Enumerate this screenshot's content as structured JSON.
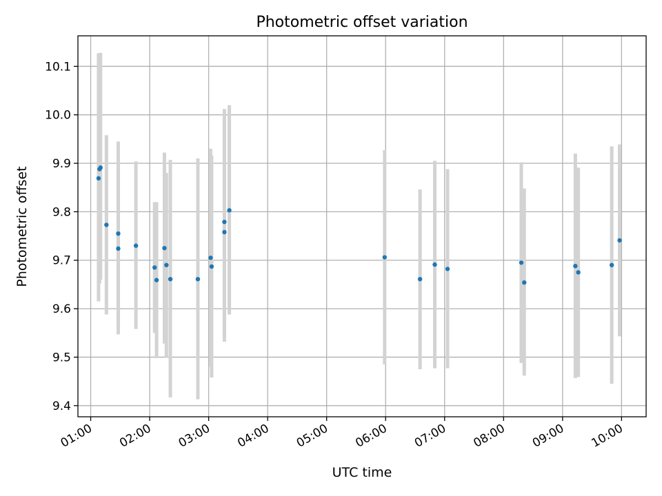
{
  "chart_data": {
    "type": "scatter",
    "title": "Photometric offset variation",
    "xlabel": "UTC time",
    "ylabel": "Photometric offset",
    "x_axis_type": "time",
    "xlim": [
      "00:47",
      "10:25"
    ],
    "ylim": [
      9.377,
      10.163
    ],
    "xticks": [
      "01:00",
      "02:00",
      "03:00",
      "04:00",
      "05:00",
      "06:00",
      "07:00",
      "08:00",
      "09:00",
      "10:00"
    ],
    "yticks": [
      9.4,
      9.5,
      9.6,
      9.7,
      9.8,
      9.9,
      10.0,
      10.1
    ],
    "ytick_labels": [
      "9.4",
      "9.5",
      "9.6",
      "9.7",
      "9.8",
      "9.9",
      "10.0",
      "10.1"
    ],
    "grid": true,
    "marker_color": "#1f77b4",
    "errorbar_color": "#d3d3d3",
    "points": [
      {
        "x": "01:08",
        "y": 9.869,
        "ylo": 9.615,
        "yhi": 10.127
      },
      {
        "x": "01:09",
        "y": 9.888,
        "ylo": 9.652,
        "yhi": 10.127
      },
      {
        "x": "01:10",
        "y": 9.891,
        "ylo": 9.66,
        "yhi": 10.128
      },
      {
        "x": "01:16",
        "y": 9.773,
        "ylo": 9.588,
        "yhi": 9.958
      },
      {
        "x": "01:28",
        "y": 9.755,
        "ylo": 9.565,
        "yhi": 9.945
      },
      {
        "x": "01:28",
        "y": 9.724,
        "ylo": 9.547,
        "yhi": 9.9
      },
      {
        "x": "01:46",
        "y": 9.73,
        "ylo": 9.558,
        "yhi": 9.904
      },
      {
        "x": "02:05",
        "y": 9.685,
        "ylo": 9.55,
        "yhi": 9.82
      },
      {
        "x": "02:07",
        "y": 9.659,
        "ylo": 9.498,
        "yhi": 9.82
      },
      {
        "x": "02:15",
        "y": 9.725,
        "ylo": 9.528,
        "yhi": 9.922
      },
      {
        "x": "02:17",
        "y": 9.69,
        "ylo": 9.5,
        "yhi": 9.88
      },
      {
        "x": "02:21",
        "y": 9.661,
        "ylo": 9.417,
        "yhi": 9.907
      },
      {
        "x": "02:49",
        "y": 9.661,
        "ylo": 9.413,
        "yhi": 9.91
      },
      {
        "x": "03:02",
        "y": 9.705,
        "ylo": 9.48,
        "yhi": 9.93
      },
      {
        "x": "03:03",
        "y": 9.687,
        "ylo": 9.458,
        "yhi": 9.916
      },
      {
        "x": "03:16",
        "y": 9.779,
        "ylo": 9.546,
        "yhi": 10.012
      },
      {
        "x": "03:16",
        "y": 9.758,
        "ylo": 9.532,
        "yhi": 9.99
      },
      {
        "x": "03:21",
        "y": 9.803,
        "ylo": 9.588,
        "yhi": 10.02
      },
      {
        "x": "05:59",
        "y": 9.706,
        "ylo": 9.485,
        "yhi": 9.927
      },
      {
        "x": "06:35",
        "y": 9.661,
        "ylo": 9.475,
        "yhi": 9.846
      },
      {
        "x": "06:50",
        "y": 9.691,
        "ylo": 9.477,
        "yhi": 9.905
      },
      {
        "x": "07:03",
        "y": 9.682,
        "ylo": 9.477,
        "yhi": 9.888
      },
      {
        "x": "08:18",
        "y": 9.695,
        "ylo": 9.488,
        "yhi": 9.902
      },
      {
        "x": "08:21",
        "y": 9.654,
        "ylo": 9.462,
        "yhi": 9.848
      },
      {
        "x": "09:13",
        "y": 9.688,
        "ylo": 9.457,
        "yhi": 9.92
      },
      {
        "x": "09:16",
        "y": 9.675,
        "ylo": 9.459,
        "yhi": 9.891
      },
      {
        "x": "09:50",
        "y": 9.69,
        "ylo": 9.445,
        "yhi": 9.935
      },
      {
        "x": "09:58",
        "y": 9.741,
        "ylo": 9.543,
        "yhi": 9.939
      }
    ]
  }
}
